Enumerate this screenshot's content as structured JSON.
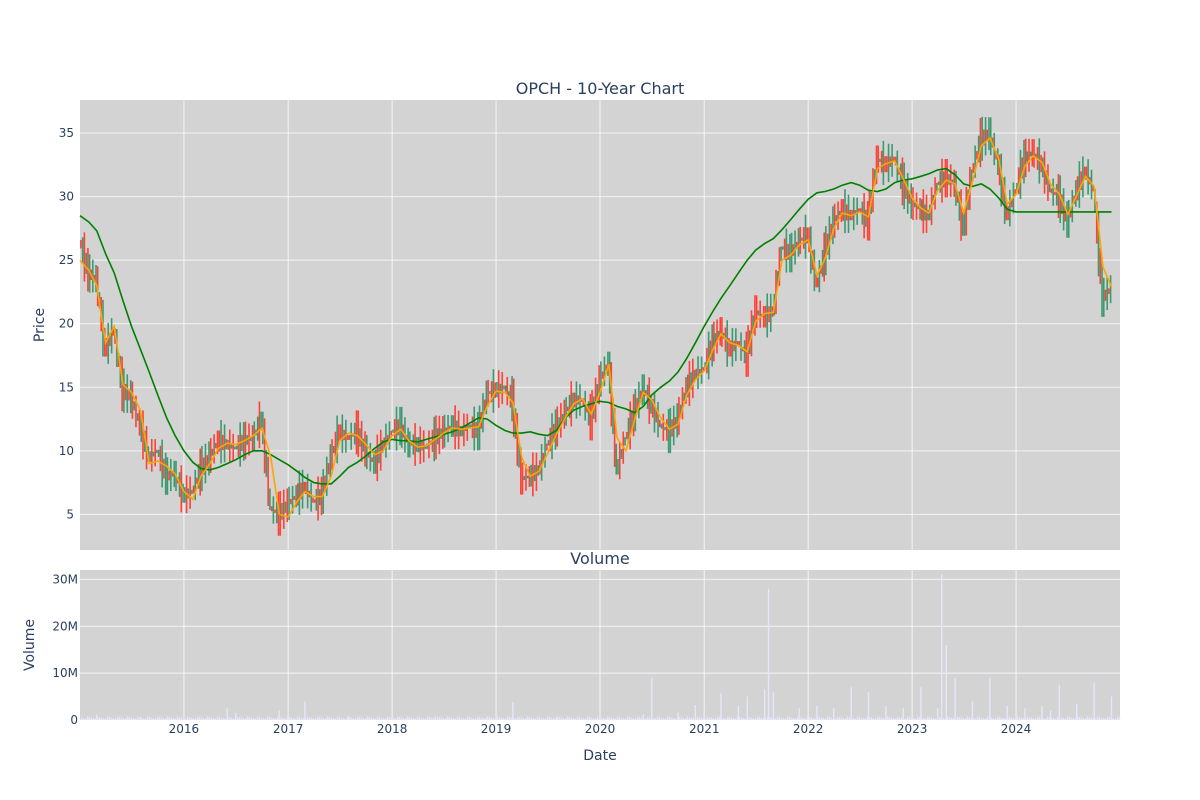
{
  "chart_data": [
    {
      "type": "candlestick",
      "title": "OPCH - 10-Year Chart",
      "ylabel": "Price",
      "xlabel": "",
      "xlim": [
        "2015-01-01",
        "2024-12-31"
      ],
      "ylim": [
        2.2,
        37.6
      ],
      "x_tick_labels": [
        "2016",
        "2017",
        "2018",
        "2019",
        "2020",
        "2021",
        "2022",
        "2023",
        "2024"
      ],
      "y_ticks": [
        5,
        10,
        15,
        20,
        25,
        30,
        35
      ],
      "y_tick_labels": [
        "5",
        "10",
        "15",
        "20",
        "25",
        "30",
        "35"
      ],
      "grid": true,
      "colors": {
        "up": "#3d9970",
        "down": "#ff4136",
        "ma_short": "#ffa500",
        "ma_long": "#008000",
        "background": "#d3d3d3"
      },
      "close_series": {
        "x": [
          "2015-01-01",
          "2015-02-01",
          "2015-03-01",
          "2015-04-01",
          "2015-05-01",
          "2015-06-01",
          "2015-07-01",
          "2015-08-01",
          "2015-09-01",
          "2015-10-01",
          "2015-11-01",
          "2015-12-01",
          "2016-01-01",
          "2016-02-01",
          "2016-03-01",
          "2016-04-01",
          "2016-05-01",
          "2016-06-01",
          "2016-07-01",
          "2016-08-01",
          "2016-09-01",
          "2016-10-01",
          "2016-11-01",
          "2016-12-01",
          "2017-01-01",
          "2017-02-01",
          "2017-03-01",
          "2017-04-01",
          "2017-05-01",
          "2017-06-01",
          "2017-07-01",
          "2017-08-01",
          "2017-09-01",
          "2017-10-01",
          "2017-11-01",
          "2017-12-01",
          "2018-01-01",
          "2018-02-01",
          "2018-03-01",
          "2018-04-01",
          "2018-05-01",
          "2018-06-01",
          "2018-07-01",
          "2018-08-01",
          "2018-09-01",
          "2018-10-01",
          "2018-11-01",
          "2018-12-01",
          "2019-01-01",
          "2019-02-01",
          "2019-03-01",
          "2019-04-01",
          "2019-05-01",
          "2019-06-01",
          "2019-07-01",
          "2019-08-01",
          "2019-09-01",
          "2019-10-01",
          "2019-11-01",
          "2019-12-01",
          "2020-01-01",
          "2020-02-01",
          "2020-03-01",
          "2020-04-01",
          "2020-05-01",
          "2020-06-01",
          "2020-07-01",
          "2020-08-01",
          "2020-09-01",
          "2020-10-01",
          "2020-11-01",
          "2020-12-01",
          "2021-01-01",
          "2021-02-01",
          "2021-03-01",
          "2021-04-01",
          "2021-05-01",
          "2021-06-01",
          "2021-07-01",
          "2021-08-01",
          "2021-09-01",
          "2021-10-01",
          "2021-11-01",
          "2021-12-01",
          "2022-01-01",
          "2022-02-01",
          "2022-03-01",
          "2022-04-01",
          "2022-05-01",
          "2022-06-01",
          "2022-07-01",
          "2022-08-01",
          "2022-09-01",
          "2022-10-01",
          "2022-11-01",
          "2022-12-01",
          "2023-01-01",
          "2023-02-01",
          "2023-03-01",
          "2023-04-01",
          "2023-05-01",
          "2023-06-01",
          "2023-07-01",
          "2023-08-01",
          "2023-09-01",
          "2023-10-01",
          "2023-11-01",
          "2023-12-01",
          "2024-01-01",
          "2024-02-01",
          "2024-03-01",
          "2024-04-01",
          "2024-05-01",
          "2024-06-01",
          "2024-07-01",
          "2024-08-01",
          "2024-09-01",
          "2024-10-01",
          "2024-11-01",
          "2024-12-01"
        ],
        "y": [
          26.5,
          24.0,
          23.5,
          18.0,
          19.5,
          14.8,
          14.2,
          12.0,
          9.5,
          10.0,
          8.0,
          8.2,
          6.5,
          6.8,
          8.5,
          9.5,
          10.8,
          10.5,
          10.2,
          10.8,
          11.0,
          12.5,
          5.5,
          5.0,
          5.8,
          6.5,
          7.2,
          6.0,
          6.5,
          9.5,
          11.5,
          11.0,
          11.5,
          10.0,
          9.0,
          10.5,
          11.5,
          12.0,
          10.5,
          10.5,
          10.3,
          11.0,
          11.5,
          12.0,
          11.5,
          12.0,
          11.5,
          14.5,
          14.8,
          15.0,
          14.0,
          7.8,
          8.0,
          8.5,
          10.5,
          11.8,
          13.0,
          14.0,
          14.0,
          12.5,
          15.5,
          17.0,
          8.5,
          11.0,
          13.0,
          15.0,
          13.5,
          12.0,
          11.5,
          12.5,
          15.0,
          16.0,
          16.5,
          18.5,
          19.5,
          18.0,
          18.5,
          17.5,
          21.0,
          20.5,
          21.0,
          26.0,
          25.5,
          26.5,
          27.0,
          23.0,
          25.5,
          28.0,
          29.0,
          28.5,
          29.0,
          28.0,
          33.0,
          32.5,
          33.0,
          31.0,
          29.5,
          29.0,
          28.5,
          31.0,
          31.5,
          31.0,
          27.5,
          32.0,
          34.5,
          35.0,
          32.5,
          28.5,
          30.5,
          33.0,
          33.5,
          32.5,
          30.5,
          30.0,
          28.0,
          30.5,
          32.0,
          30.5,
          22.0,
          22.8
        ]
      },
      "ma_short_series": {
        "x": [
          "2015-01-01",
          "2015-02-01",
          "2015-03-01",
          "2015-04-01",
          "2015-05-01",
          "2015-06-01",
          "2015-07-01",
          "2015-08-01",
          "2015-09-01",
          "2015-10-01",
          "2015-11-01",
          "2015-12-01",
          "2016-01-01",
          "2016-02-01",
          "2016-03-01",
          "2016-04-01",
          "2016-05-01",
          "2016-06-01",
          "2016-07-01",
          "2016-08-01",
          "2016-09-01",
          "2016-10-01",
          "2016-11-01",
          "2016-12-01",
          "2017-01-01",
          "2017-02-01",
          "2017-03-01",
          "2017-04-01",
          "2017-05-01",
          "2017-06-01",
          "2017-07-01",
          "2017-08-01",
          "2017-09-01",
          "2017-10-01",
          "2017-11-01",
          "2017-12-01",
          "2018-01-01",
          "2018-02-01",
          "2018-03-01",
          "2018-04-01",
          "2018-05-01",
          "2018-06-01",
          "2018-07-01",
          "2018-08-01",
          "2018-09-01",
          "2018-10-01",
          "2018-11-01",
          "2018-12-01",
          "2019-01-01",
          "2019-02-01",
          "2019-03-01",
          "2019-04-01",
          "2019-05-01",
          "2019-06-01",
          "2019-07-01",
          "2019-08-01",
          "2019-09-01",
          "2019-10-01",
          "2019-11-01",
          "2019-12-01",
          "2020-01-01",
          "2020-02-01",
          "2020-03-01",
          "2020-04-01",
          "2020-05-01",
          "2020-06-01",
          "2020-07-01",
          "2020-08-01",
          "2020-09-01",
          "2020-10-01",
          "2020-11-01",
          "2020-12-01",
          "2021-01-01",
          "2021-02-01",
          "2021-03-01",
          "2021-04-01",
          "2021-05-01",
          "2021-06-01",
          "2021-07-01",
          "2021-08-01",
          "2021-09-01",
          "2021-10-01",
          "2021-11-01",
          "2021-12-01",
          "2022-01-01",
          "2022-02-01",
          "2022-03-01",
          "2022-04-01",
          "2022-05-01",
          "2022-06-01",
          "2022-07-01",
          "2022-08-01",
          "2022-09-01",
          "2022-10-01",
          "2022-11-01",
          "2022-12-01",
          "2023-01-01",
          "2023-02-01",
          "2023-03-01",
          "2023-04-01",
          "2023-05-01",
          "2023-06-01",
          "2023-07-01",
          "2023-08-01",
          "2023-09-01",
          "2023-10-01",
          "2023-11-01",
          "2023-12-01",
          "2024-01-01",
          "2024-02-01",
          "2024-03-01",
          "2024-04-01",
          "2024-05-01",
          "2024-06-01",
          "2024-07-01",
          "2024-08-01",
          "2024-09-01",
          "2024-10-01",
          "2024-11-01",
          "2024-12-01"
        ],
        "y": [
          25.0,
          24.2,
          23.0,
          18.5,
          19.8,
          15.2,
          14.6,
          13.2,
          9.0,
          9.2,
          8.8,
          8.2,
          6.8,
          6.2,
          8.0,
          9.0,
          10.2,
          10.6,
          10.5,
          10.8,
          11.2,
          11.8,
          9.5,
          5.0,
          4.8,
          6.0,
          6.8,
          6.4,
          6.4,
          8.0,
          10.8,
          11.4,
          11.2,
          10.5,
          9.7,
          10.0,
          11.2,
          11.7,
          10.8,
          10.3,
          10.4,
          10.9,
          11.4,
          11.8,
          11.7,
          11.8,
          11.9,
          13.5,
          14.7,
          14.6,
          13.8,
          9.5,
          8.0,
          8.4,
          9.8,
          11.3,
          12.6,
          13.7,
          14.1,
          12.9,
          14.6,
          16.8,
          11.0,
          10.0,
          12.4,
          14.6,
          14.0,
          12.6,
          11.7,
          12.1,
          14.4,
          15.6,
          16.3,
          18.0,
          19.2,
          18.5,
          18.3,
          17.8,
          20.2,
          20.8,
          20.9,
          25.0,
          25.4,
          26.2,
          26.6,
          23.8,
          25.1,
          27.5,
          28.7,
          28.5,
          28.8,
          28.4,
          32.2,
          32.6,
          32.8,
          31.4,
          29.9,
          29.1,
          28.7,
          30.5,
          31.3,
          31.0,
          28.7,
          31.2,
          34.0,
          34.6,
          33.0,
          29.4,
          30.2,
          32.4,
          33.2,
          32.7,
          31.0,
          30.2,
          28.6,
          30.1,
          31.6,
          30.8,
          24.5,
          22.9
        ]
      },
      "ma_long_series": {
        "x": [
          "2015-01-01",
          "2015-02-01",
          "2015-03-01",
          "2015-04-01",
          "2015-05-01",
          "2015-06-01",
          "2015-07-01",
          "2015-08-01",
          "2015-09-01",
          "2015-10-01",
          "2015-11-01",
          "2015-12-01",
          "2016-01-01",
          "2016-02-01",
          "2016-03-01",
          "2016-04-01",
          "2016-05-01",
          "2016-06-01",
          "2016-07-01",
          "2016-08-01",
          "2016-09-01",
          "2016-10-01",
          "2016-11-01",
          "2016-12-01",
          "2017-01-01",
          "2017-02-01",
          "2017-03-01",
          "2017-04-01",
          "2017-05-01",
          "2017-06-01",
          "2017-07-01",
          "2017-08-01",
          "2017-09-01",
          "2017-10-01",
          "2017-11-01",
          "2017-12-01",
          "2018-01-01",
          "2018-02-01",
          "2018-03-01",
          "2018-04-01",
          "2018-05-01",
          "2018-06-01",
          "2018-07-01",
          "2018-08-01",
          "2018-09-01",
          "2018-10-01",
          "2018-11-01",
          "2018-12-01",
          "2019-01-01",
          "2019-02-01",
          "2019-03-01",
          "2019-04-01",
          "2019-05-01",
          "2019-06-01",
          "2019-07-01",
          "2019-08-01",
          "2019-09-01",
          "2019-10-01",
          "2019-11-01",
          "2019-12-01",
          "2020-01-01",
          "2020-02-01",
          "2020-03-01",
          "2020-04-01",
          "2020-05-01",
          "2020-06-01",
          "2020-07-01",
          "2020-08-01",
          "2020-09-01",
          "2020-10-01",
          "2020-11-01",
          "2020-12-01",
          "2021-01-01",
          "2021-02-01",
          "2021-03-01",
          "2021-04-01",
          "2021-05-01",
          "2021-06-01",
          "2021-07-01",
          "2021-08-01",
          "2021-09-01",
          "2021-10-01",
          "2021-11-01",
          "2021-12-01",
          "2022-01-01",
          "2022-02-01",
          "2022-03-01",
          "2022-04-01",
          "2022-05-01",
          "2022-06-01",
          "2022-07-01",
          "2022-08-01",
          "2022-09-01",
          "2022-10-01",
          "2022-11-01",
          "2022-12-01",
          "2023-01-01",
          "2023-02-01",
          "2023-03-01",
          "2023-04-01",
          "2023-05-01",
          "2023-06-01",
          "2023-07-01",
          "2023-08-01",
          "2023-09-01",
          "2023-10-01",
          "2023-11-01",
          "2023-12-01",
          "2024-01-01",
          "2024-02-01",
          "2024-03-01",
          "2024-04-01",
          "2024-05-01",
          "2024-06-01",
          "2024-07-01",
          "2024-08-01",
          "2024-09-01",
          "2024-10-01",
          "2024-11-01",
          "2024-12-01"
        ],
        "y": [
          28.5,
          28.0,
          27.3,
          25.5,
          24.0,
          21.8,
          19.8,
          18.0,
          16.2,
          14.4,
          12.6,
          11.2,
          10.0,
          9.1,
          8.6,
          8.5,
          8.7,
          9.0,
          9.3,
          9.7,
          10.0,
          10.0,
          9.7,
          9.3,
          8.9,
          8.4,
          7.9,
          7.5,
          7.4,
          7.4,
          8.0,
          8.7,
          9.1,
          9.6,
          10.2,
          10.7,
          10.9,
          10.8,
          10.8,
          10.7,
          10.9,
          11.1,
          11.3,
          11.5,
          11.8,
          12.2,
          12.6,
          12.5,
          12.0,
          11.6,
          11.4,
          11.4,
          11.5,
          11.3,
          11.2,
          11.6,
          12.6,
          13.2,
          13.5,
          13.7,
          13.9,
          13.8,
          13.5,
          13.3,
          13.0,
          13.5,
          14.4,
          15.0,
          15.5,
          16.2,
          17.3,
          18.5,
          19.8,
          21.0,
          22.0,
          23.0,
          24.0,
          25.0,
          25.8,
          26.3,
          26.7,
          27.4,
          28.2,
          29.0,
          29.8,
          30.3,
          30.4,
          30.6,
          30.9,
          31.1,
          30.9,
          30.5,
          30.4,
          30.6,
          31.1,
          31.3,
          31.4,
          31.6,
          31.8,
          32.1,
          32.2,
          31.7,
          31.0,
          30.8,
          31.0,
          30.6,
          29.9,
          29.0,
          28.8,
          28.8,
          28.8,
          28.8,
          28.8,
          28.8,
          28.8,
          28.8,
          28.8,
          28.8,
          28.8,
          28.8
        ]
      }
    },
    {
      "type": "bar",
      "title": "Volume",
      "xlabel": "Date",
      "ylabel": "Volume",
      "ylim": [
        0,
        32000000
      ],
      "y_ticks": [
        0,
        10000000,
        20000000,
        30000000
      ],
      "y_tick_labels": [
        "0",
        "10M",
        "20M",
        "30M"
      ],
      "x_tick_labels": [
        "2016",
        "2017",
        "2018",
        "2019",
        "2020",
        "2021",
        "2022",
        "2023",
        "2024"
      ],
      "grid": true,
      "color": "#e6e6fa",
      "x": [
        "2015-03-01",
        "2015-08-01",
        "2016-01-01",
        "2016-06-01",
        "2016-07-01",
        "2016-12-01",
        "2017-01-01",
        "2017-03-01",
        "2017-08-01",
        "2018-01-01",
        "2018-06-01",
        "2018-12-01",
        "2019-03-01",
        "2019-08-01",
        "2020-01-01",
        "2020-06-01",
        "2020-07-01",
        "2020-10-01",
        "2020-12-01",
        "2021-01-01",
        "2021-03-01",
        "2021-05-01",
        "2021-06-01",
        "2021-08-01",
        "2021-08-15",
        "2021-09-01",
        "2021-12-01",
        "2022-02-01",
        "2022-04-01",
        "2022-06-01",
        "2022-08-01",
        "2022-10-01",
        "2022-12-01",
        "2023-02-01",
        "2023-04-01",
        "2023-04-15",
        "2023-05-01",
        "2023-06-01",
        "2023-08-01",
        "2023-10-01",
        "2023-12-01",
        "2024-02-01",
        "2024-04-01",
        "2024-05-01",
        "2024-06-01",
        "2024-08-01",
        "2024-10-01",
        "2024-12-01"
      ],
      "values": [
        1200000,
        600000,
        500000,
        2500000,
        1500000,
        2000000,
        2500000,
        4000000,
        800000,
        700000,
        800000,
        600000,
        3800000,
        600000,
        500000,
        1200000,
        9000000,
        1600000,
        3200000,
        2500000,
        5800000,
        3000000,
        5000000,
        6500000,
        28000000,
        6000000,
        2500000,
        3000000,
        2500000,
        7000000,
        6000000,
        3000000,
        2500000,
        7000000,
        2500000,
        31000000,
        16000000,
        9000000,
        4000000,
        9000000,
        3000000,
        2500000,
        3000000,
        2000000,
        7500000,
        3500000,
        8000000,
        5000000
      ]
    }
  ]
}
